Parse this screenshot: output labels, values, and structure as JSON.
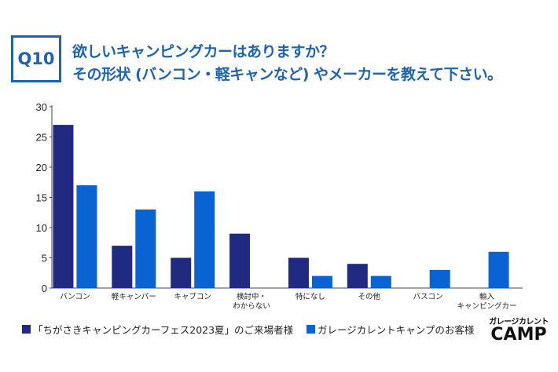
{
  "header": {
    "question_label": "Q10",
    "title_line1": "欲しいキャンピングカーはありますか？",
    "title_line2": "その形状 (バンコン・軽キャンなど) やメーカーを教えて下さい。"
  },
  "logo": {
    "line1": "ガレージカレント",
    "line2": "CAMP"
  },
  "chart_data": {
    "type": "bar",
    "categories": [
      "バンコン",
      "軽キャンパー",
      "キャブコン",
      "検討中・\nわからない",
      "特になし",
      "その他",
      "バスコン",
      "輸入\nキャンピングカー"
    ],
    "series": [
      {
        "name": "「ちがさきキャンピングカーフェス2023夏」のご来場者様",
        "color": "#1f2a80",
        "values": [
          27,
          7,
          5,
          9,
          5,
          4,
          0,
          0
        ]
      },
      {
        "name": "ガレージカレントキャンプのお客様",
        "color": "#0a63d2",
        "values": [
          17,
          13,
          16,
          0,
          2,
          2,
          3,
          6
        ]
      }
    ],
    "ylim": [
      0,
      30
    ],
    "yticks": [
      0,
      5,
      10,
      15,
      20,
      25,
      30
    ],
    "grid": false,
    "legend": "bottom"
  }
}
